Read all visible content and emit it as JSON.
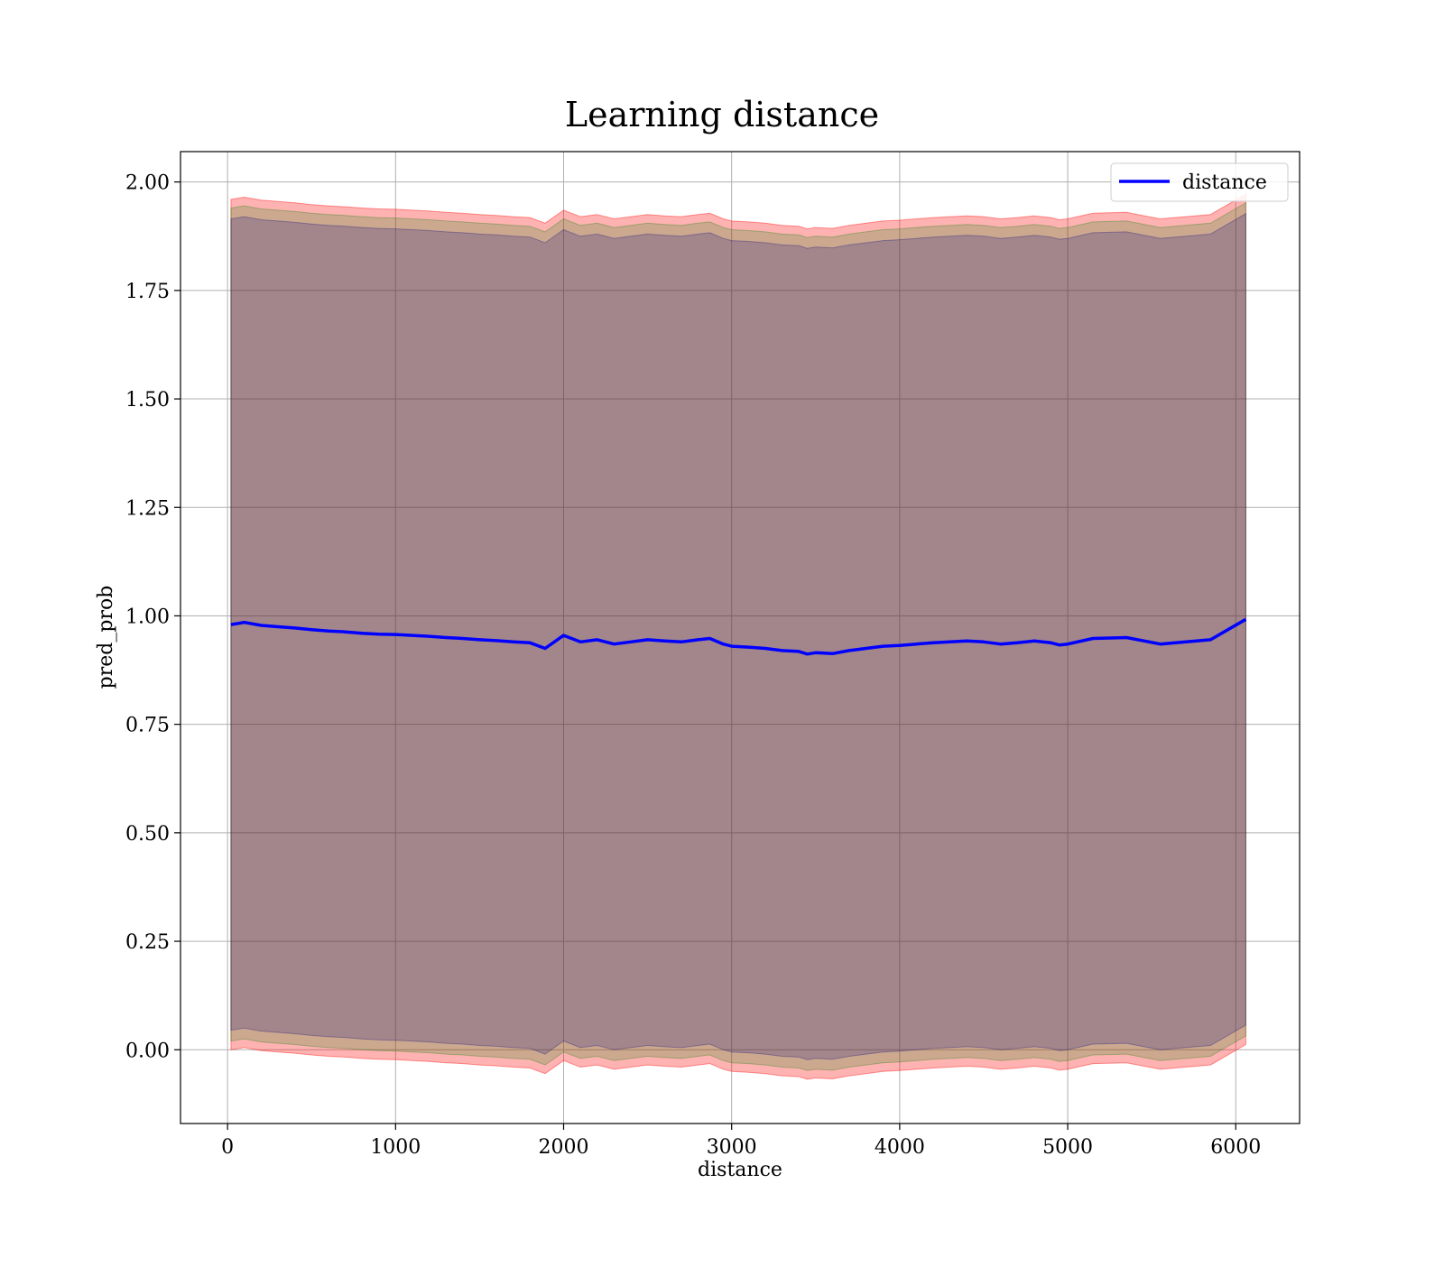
{
  "chart_data": {
    "type": "line",
    "title": "Learning distance",
    "xlabel": "distance",
    "ylabel": "pred_prob",
    "xlim": [
      -280,
      6380
    ],
    "ylim": [
      -0.17,
      2.07
    ],
    "xticks": [
      0,
      1000,
      2000,
      3000,
      4000,
      5000,
      6000
    ],
    "yticks": [
      0.0,
      0.25,
      0.5,
      0.75,
      1.0,
      1.25,
      1.5,
      1.75,
      2.0
    ],
    "xtick_labels": [
      "0",
      "1000",
      "2000",
      "3000",
      "4000",
      "5000",
      "6000"
    ],
    "ytick_labels": [
      "0.00",
      "0.25",
      "0.50",
      "0.75",
      "1.00",
      "1.25",
      "1.50",
      "1.75",
      "2.00"
    ],
    "grid": true,
    "legend_position": "top-right",
    "series": [
      {
        "name": "distance",
        "color": "#0000ff",
        "x": [
          20,
          100,
          200,
          300,
          400,
          500,
          600,
          700,
          800,
          900,
          1000,
          1100,
          1200,
          1300,
          1400,
          1500,
          1600,
          1700,
          1800,
          1890,
          2000,
          2100,
          2200,
          2300,
          2400,
          2500,
          2600,
          2700,
          2800,
          2870,
          2950,
          3000,
          3100,
          3200,
          3300,
          3400,
          3450,
          3500,
          3600,
          3700,
          3800,
          3900,
          4000,
          4100,
          4200,
          4300,
          4400,
          4500,
          4600,
          4700,
          4800,
          4900,
          4950,
          5000,
          5150,
          5350,
          5550,
          5850,
          6060
        ],
        "y": [
          0.98,
          0.985,
          0.978,
          0.975,
          0.972,
          0.968,
          0.965,
          0.963,
          0.96,
          0.958,
          0.957,
          0.955,
          0.953,
          0.95,
          0.948,
          0.945,
          0.943,
          0.94,
          0.938,
          0.925,
          0.955,
          0.94,
          0.945,
          0.935,
          0.94,
          0.945,
          0.942,
          0.94,
          0.945,
          0.948,
          0.935,
          0.93,
          0.928,
          0.925,
          0.92,
          0.918,
          0.912,
          0.915,
          0.913,
          0.92,
          0.925,
          0.93,
          0.932,
          0.935,
          0.938,
          0.94,
          0.942,
          0.94,
          0.935,
          0.938,
          0.942,
          0.938,
          0.933,
          0.935,
          0.948,
          0.95,
          0.935,
          0.945,
          0.992
        ]
      }
    ],
    "bands": [
      {
        "color": "#ff0000",
        "opacity": 0.3,
        "x": [
          20,
          100,
          200,
          300,
          400,
          500,
          600,
          700,
          800,
          900,
          1000,
          1100,
          1200,
          1300,
          1400,
          1500,
          1600,
          1700,
          1800,
          1890,
          2000,
          2100,
          2200,
          2300,
          2400,
          2500,
          2600,
          2700,
          2800,
          2870,
          2950,
          3000,
          3100,
          3200,
          3300,
          3400,
          3450,
          3500,
          3600,
          3700,
          3800,
          3900,
          4000,
          4100,
          4200,
          4300,
          4400,
          4500,
          4600,
          4700,
          4800,
          4900,
          4950,
          5000,
          5150,
          5350,
          5550,
          5850,
          6060
        ],
        "upper": [
          1.96,
          1.965,
          1.958,
          1.955,
          1.952,
          1.948,
          1.945,
          1.943,
          1.94,
          1.938,
          1.937,
          1.935,
          1.933,
          1.93,
          1.928,
          1.925,
          1.923,
          1.92,
          1.918,
          1.905,
          1.935,
          1.92,
          1.925,
          1.915,
          1.92,
          1.925,
          1.922,
          1.92,
          1.925,
          1.928,
          1.915,
          1.91,
          1.908,
          1.905,
          1.9,
          1.898,
          1.892,
          1.895,
          1.893,
          1.9,
          1.905,
          1.91,
          1.912,
          1.915,
          1.918,
          1.92,
          1.922,
          1.92,
          1.915,
          1.918,
          1.922,
          1.918,
          1.913,
          1.915,
          1.928,
          1.93,
          1.915,
          1.925,
          1.972
        ],
        "lower": [
          0.0,
          0.005,
          -0.002,
          -0.005,
          -0.008,
          -0.012,
          -0.015,
          -0.017,
          -0.02,
          -0.022,
          -0.023,
          -0.025,
          -0.027,
          -0.03,
          -0.032,
          -0.035,
          -0.037,
          -0.04,
          -0.042,
          -0.055,
          -0.025,
          -0.04,
          -0.035,
          -0.045,
          -0.04,
          -0.035,
          -0.038,
          -0.04,
          -0.035,
          -0.032,
          -0.045,
          -0.05,
          -0.052,
          -0.055,
          -0.06,
          -0.062,
          -0.068,
          -0.065,
          -0.067,
          -0.06,
          -0.055,
          -0.05,
          -0.048,
          -0.045,
          -0.042,
          -0.04,
          -0.038,
          -0.04,
          -0.045,
          -0.042,
          -0.038,
          -0.042,
          -0.047,
          -0.045,
          -0.032,
          -0.03,
          -0.045,
          -0.035,
          0.012
        ]
      },
      {
        "color": "#008000",
        "opacity": 0.2,
        "x": [
          20,
          100,
          200,
          300,
          400,
          500,
          600,
          700,
          800,
          900,
          1000,
          1100,
          1200,
          1300,
          1400,
          1500,
          1600,
          1700,
          1800,
          1890,
          2000,
          2100,
          2200,
          2300,
          2400,
          2500,
          2600,
          2700,
          2800,
          2870,
          2950,
          3000,
          3100,
          3200,
          3300,
          3400,
          3450,
          3500,
          3600,
          3700,
          3800,
          3900,
          4000,
          4100,
          4200,
          4300,
          4400,
          4500,
          4600,
          4700,
          4800,
          4900,
          4950,
          5000,
          5150,
          5350,
          5550,
          5850,
          6060
        ],
        "upper": [
          1.94,
          1.945,
          1.938,
          1.935,
          1.932,
          1.928,
          1.925,
          1.923,
          1.92,
          1.918,
          1.917,
          1.915,
          1.913,
          1.91,
          1.908,
          1.905,
          1.903,
          1.9,
          1.898,
          1.885,
          1.915,
          1.9,
          1.905,
          1.895,
          1.9,
          1.905,
          1.902,
          1.9,
          1.905,
          1.908,
          1.895,
          1.89,
          1.888,
          1.885,
          1.88,
          1.878,
          1.872,
          1.875,
          1.873,
          1.88,
          1.885,
          1.89,
          1.892,
          1.895,
          1.898,
          1.9,
          1.902,
          1.9,
          1.895,
          1.898,
          1.902,
          1.898,
          1.893,
          1.895,
          1.908,
          1.91,
          1.895,
          1.905,
          1.952
        ],
        "lower": [
          0.02,
          0.025,
          0.018,
          0.015,
          0.012,
          0.008,
          0.005,
          0.003,
          0.0,
          -0.002,
          -0.003,
          -0.005,
          -0.007,
          -0.01,
          -0.012,
          -0.015,
          -0.017,
          -0.02,
          -0.022,
          -0.035,
          -0.005,
          -0.02,
          -0.015,
          -0.025,
          -0.02,
          -0.015,
          -0.018,
          -0.02,
          -0.015,
          -0.012,
          -0.025,
          -0.03,
          -0.032,
          -0.035,
          -0.04,
          -0.042,
          -0.048,
          -0.045,
          -0.047,
          -0.04,
          -0.035,
          -0.03,
          -0.028,
          -0.025,
          -0.022,
          -0.02,
          -0.018,
          -0.02,
          -0.025,
          -0.022,
          -0.018,
          -0.022,
          -0.027,
          -0.025,
          -0.012,
          -0.01,
          -0.025,
          -0.015,
          0.032
        ]
      },
      {
        "color": "#000080",
        "opacity": 0.2,
        "x": [
          20,
          100,
          200,
          300,
          400,
          500,
          600,
          700,
          800,
          900,
          1000,
          1100,
          1200,
          1300,
          1400,
          1500,
          1600,
          1700,
          1800,
          1890,
          2000,
          2100,
          2200,
          2300,
          2400,
          2500,
          2600,
          2700,
          2800,
          2870,
          2950,
          3000,
          3100,
          3200,
          3300,
          3400,
          3450,
          3500,
          3600,
          3700,
          3800,
          3900,
          4000,
          4100,
          4200,
          4300,
          4400,
          4500,
          4600,
          4700,
          4800,
          4900,
          4950,
          5000,
          5150,
          5350,
          5550,
          5850,
          6060
        ],
        "upper": [
          1.915,
          1.92,
          1.913,
          1.91,
          1.907,
          1.903,
          1.9,
          1.898,
          1.895,
          1.893,
          1.892,
          1.89,
          1.888,
          1.885,
          1.883,
          1.88,
          1.878,
          1.875,
          1.873,
          1.86,
          1.89,
          1.875,
          1.88,
          1.87,
          1.875,
          1.88,
          1.877,
          1.875,
          1.88,
          1.883,
          1.87,
          1.865,
          1.863,
          1.86,
          1.855,
          1.853,
          1.847,
          1.85,
          1.848,
          1.855,
          1.86,
          1.865,
          1.867,
          1.87,
          1.873,
          1.875,
          1.877,
          1.875,
          1.87,
          1.873,
          1.877,
          1.873,
          1.868,
          1.87,
          1.883,
          1.885,
          1.87,
          1.88,
          1.927
        ],
        "lower": [
          0.045,
          0.05,
          0.043,
          0.04,
          0.037,
          0.033,
          0.03,
          0.028,
          0.025,
          0.023,
          0.022,
          0.02,
          0.018,
          0.015,
          0.013,
          0.01,
          0.008,
          0.005,
          0.003,
          -0.01,
          0.02,
          0.005,
          0.01,
          0.0,
          0.005,
          0.01,
          0.007,
          0.005,
          0.01,
          0.013,
          0.0,
          -0.005,
          -0.007,
          -0.01,
          -0.015,
          -0.017,
          -0.023,
          -0.02,
          -0.022,
          -0.015,
          -0.01,
          -0.005,
          -0.003,
          0.0,
          0.003,
          0.005,
          0.007,
          0.005,
          0.0,
          0.003,
          0.007,
          0.003,
          -0.002,
          0.0,
          0.013,
          0.015,
          0.0,
          0.01,
          0.057
        ]
      }
    ]
  }
}
